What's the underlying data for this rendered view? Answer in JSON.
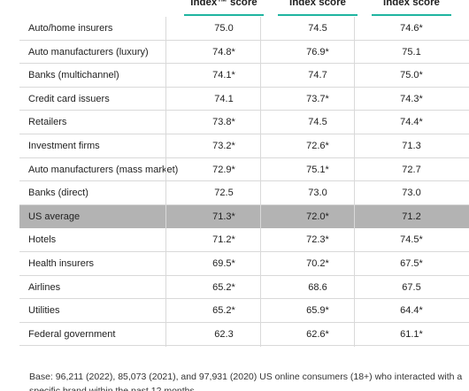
{
  "headers": [
    "Index™ score",
    "Index score",
    "Index score"
  ],
  "rows": [
    {
      "label": "Auto/home insurers",
      "v1": "75.0",
      "v2": "74.5",
      "v3": "74.6*"
    },
    {
      "label": "Auto manufacturers (luxury)",
      "v1": "74.8*",
      "v2": "76.9*",
      "v3": "75.1"
    },
    {
      "label": "Banks (multichannel)",
      "v1": "74.1*",
      "v2": "74.7",
      "v3": "75.0*"
    },
    {
      "label": "Credit card issuers",
      "v1": "74.1",
      "v2": "73.7*",
      "v3": "74.3*"
    },
    {
      "label": "Retailers",
      "v1": "73.8*",
      "v2": "74.5",
      "v3": "74.4*"
    },
    {
      "label": "Investment firms",
      "v1": "73.2*",
      "v2": "72.6*",
      "v3": "71.3"
    },
    {
      "label": "Auto manufacturers (mass market)",
      "v1": "72.9*",
      "v2": "75.1*",
      "v3": "72.7"
    },
    {
      "label": "Banks (direct)",
      "v1": "72.5",
      "v2": "73.0",
      "v3": "73.0"
    },
    {
      "label": "US average",
      "v1": "71.3*",
      "v2": "72.0*",
      "v3": "71.2",
      "highlight": true
    },
    {
      "label": "Hotels",
      "v1": "71.2*",
      "v2": "72.3*",
      "v3": "74.5*"
    },
    {
      "label": "Health insurers",
      "v1": "69.5*",
      "v2": "70.2*",
      "v3": "67.5*"
    },
    {
      "label": "Airlines",
      "v1": "65.2*",
      "v2": "68.6",
      "v3": "67.5"
    },
    {
      "label": "Utilities",
      "v1": "65.2*",
      "v2": "65.9*",
      "v3": "64.4*"
    },
    {
      "label": "Federal government",
      "v1": "62.3",
      "v2": "62.6*",
      "v3": "61.1*"
    }
  ],
  "footnote": "Base: 96,211 (2022), 85,073 (2021), and 97,931 (2020) US online consumers (18+) who interacted with a specific brand within the past 12 months",
  "colors": {
    "accent": "#1fb5a0",
    "highlight_row": "#b3b3b3",
    "divider": "#d9d9d9"
  }
}
